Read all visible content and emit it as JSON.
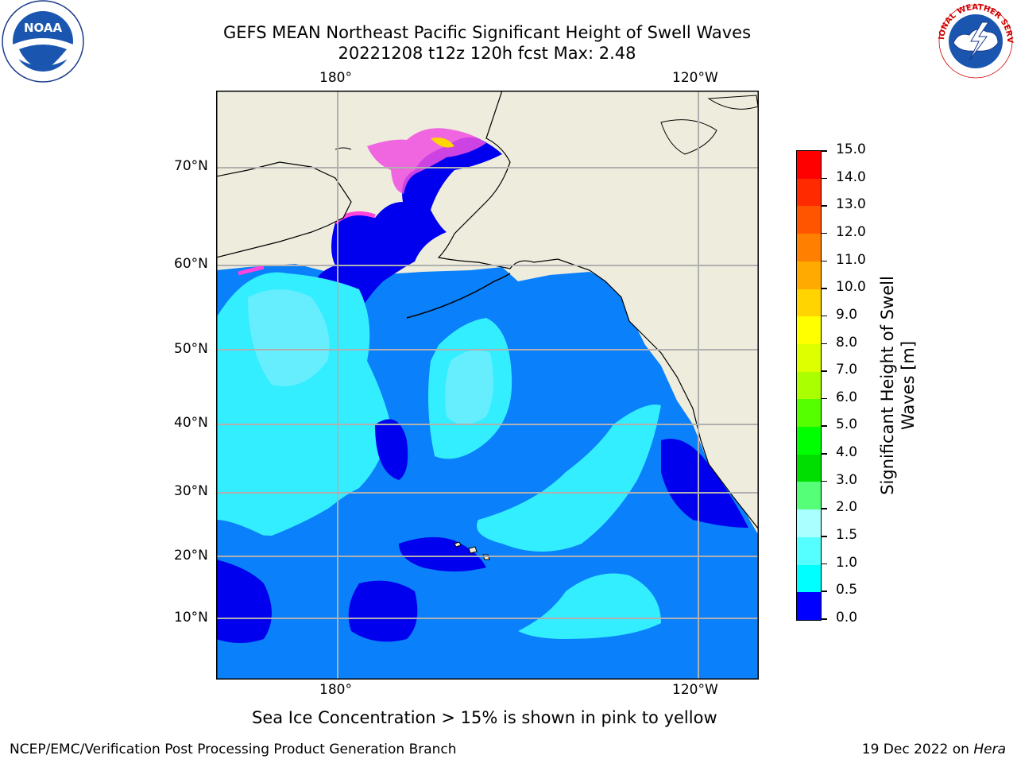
{
  "header": {
    "title_line1": "GEFS MEAN Northeast Pacific Significant Height of Swell Waves",
    "title_line2": "20221208 t12z 120h fcst   Max: 2.48"
  },
  "map": {
    "lon_labels_top": [
      "180°",
      "120°W"
    ],
    "lon_labels_bottom": [
      "180°",
      "120°W"
    ],
    "lat_labels": [
      "70°N",
      "60°N",
      "50°N",
      "40°N",
      "30°N",
      "20°N",
      "10°N"
    ]
  },
  "colorbar": {
    "label_line1": "Significant Height of Swell",
    "label_line2": "Waves [m]",
    "ticks": [
      "15.0",
      "14.0",
      "13.0",
      "12.0",
      "11.0",
      "10.0",
      "9.0",
      "8.0",
      "7.0",
      "6.0",
      "5.0",
      "4.0",
      "3.0",
      "2.0",
      "1.5",
      "1.0",
      "0.5",
      "0.0"
    ],
    "colors": [
      "#ff0000",
      "#ff2a00",
      "#ff5500",
      "#ff7f00",
      "#ffaa00",
      "#ffd400",
      "#ffff00",
      "#ddff00",
      "#aaff00",
      "#55ff00",
      "#00ff00",
      "#00dd00",
      "#55ff77",
      "#aaffff",
      "#55ffff",
      "#00ffff",
      "#007fff",
      "#0000ff"
    ]
  },
  "caption": "Sea Ice Concentration > 15% is shown in pink to yellow",
  "footer": {
    "left": "NCEP/EMC/Verification Post Processing Product Generation Branch",
    "right_date": "19 Dec 2022 on ",
    "right_host": "Hera"
  },
  "logos": {
    "noaa_text": "NOAA",
    "noaa_ring": "NATIONAL OCEANIC AND ATMOSPHERIC ADMINISTRATION · U.S. DEPARTMENT OF COMMERCE",
    "nws_ring": "NATIONAL WEATHER SERVICE"
  }
}
